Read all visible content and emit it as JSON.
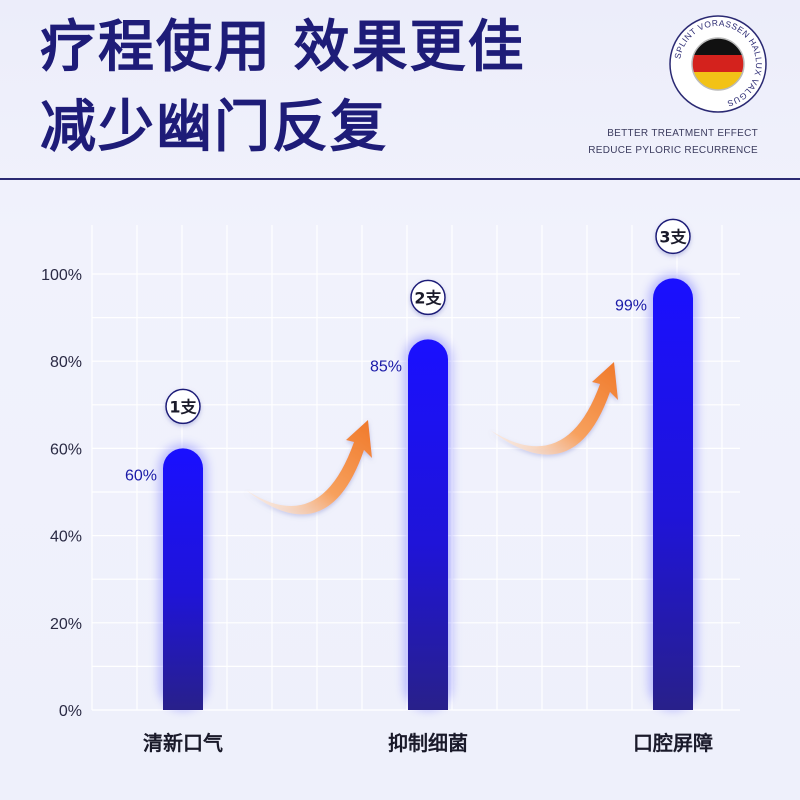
{
  "header": {
    "title_line1": "疗程使用 效果更佳",
    "title_line2": "减少幽门反复",
    "subtitle_en_line1": "BETTER TREATMENT EFFECT",
    "subtitle_en_line2": "REDUCE PYLORIC RECURRENCE"
  },
  "badge": {
    "ring_text": "SPLINT VORASSEN HALLUX VALGUS",
    "flag_colors": [
      "#111111",
      "#d4221d",
      "#f2c217"
    ],
    "icon": "german-flag-icon"
  },
  "colors": {
    "title": "#1e1c78",
    "bar_top": "#1a10ff",
    "bar_bottom": "#28208a",
    "value_label": "#1a1aa8",
    "arrow": "#f0792a",
    "grid": "#ffffff"
  },
  "chart_data": {
    "type": "bar",
    "categories": [
      "清新口气",
      "抑制细菌",
      "口腔屏障"
    ],
    "values": [
      60,
      85,
      99
    ],
    "value_labels": [
      "60%",
      "85%",
      "99%"
    ],
    "stage_labels": [
      "1支",
      "2支",
      "3支"
    ],
    "y_ticks": [
      "0%",
      "20%",
      "40%",
      "60%",
      "80%",
      "100%"
    ],
    "ylim": [
      0,
      100
    ],
    "grid": true,
    "annotations": [
      "growth-arrow",
      "growth-arrow"
    ],
    "xlabel": "",
    "ylabel": ""
  }
}
